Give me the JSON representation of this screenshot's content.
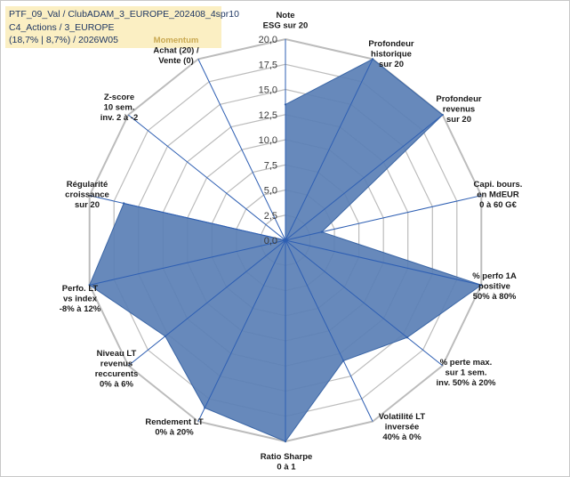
{
  "info": {
    "line1": "PTF_09_Val / ClubADAM_3_EUROPE_202408_4spr10",
    "line2": "C4_Actions / 3_EUROPE",
    "line3": "(18,7% | 8,7%) / 2026W05"
  },
  "chart_data": {
    "type": "radar",
    "rmin": 0,
    "rmax": 20,
    "grid": true,
    "ticks": [
      "0,0",
      "2,5",
      "5,0",
      "7,5",
      "10,0",
      "12,5",
      "15,0",
      "17,5",
      "20,0"
    ],
    "axes": [
      {
        "label": "Note\nESG sur 20",
        "value": 13.5
      },
      {
        "label": "Profondeur\nhistorique\nsur 20",
        "value": 20
      },
      {
        "label": "Profondeur\nrevenus\nsur 20",
        "value": 20
      },
      {
        "label": "Capi. bours.\nen MdEUR\n0 à 60 G€",
        "value": 3.7
      },
      {
        "label": "% perfo 1A\npositive\n50% à 80%",
        "value": 20
      },
      {
        "label": "% perte max.\nsur 1 sem.\ninv. 50% à 20%",
        "value": 15.5
      },
      {
        "label": "Volatilité LT\ninversée\n40% à 0%",
        "value": 13.3
      },
      {
        "label": "Ratio Sharpe\n0 à 1",
        "value": 20
      },
      {
        "label": "Rendement LT\n0% à 20%",
        "value": 18.5
      },
      {
        "label": "Niveau LT\nrevenus\nreccurents\n0% à 6%",
        "value": 15.3
      },
      {
        "label": "Perfo. LT\nvs index\n-8% à 12%",
        "value": 20
      },
      {
        "label": "Régularité\ncroissance\nsur 20",
        "value": 16.5
      },
      {
        "label": "Z-score\n10 sem.\ninv. 2 à -2",
        "value": 0
      },
      {
        "label": "Momentum\nAchat (20) /\nVente (0)",
        "value": 0
      }
    ],
    "colors": {
      "fill": "#5a7fb5",
      "outline": "#3b66a6",
      "grid": "#bcbcbc",
      "spoke": "#2e5fb3",
      "momentum_label": "#c9a850"
    }
  }
}
